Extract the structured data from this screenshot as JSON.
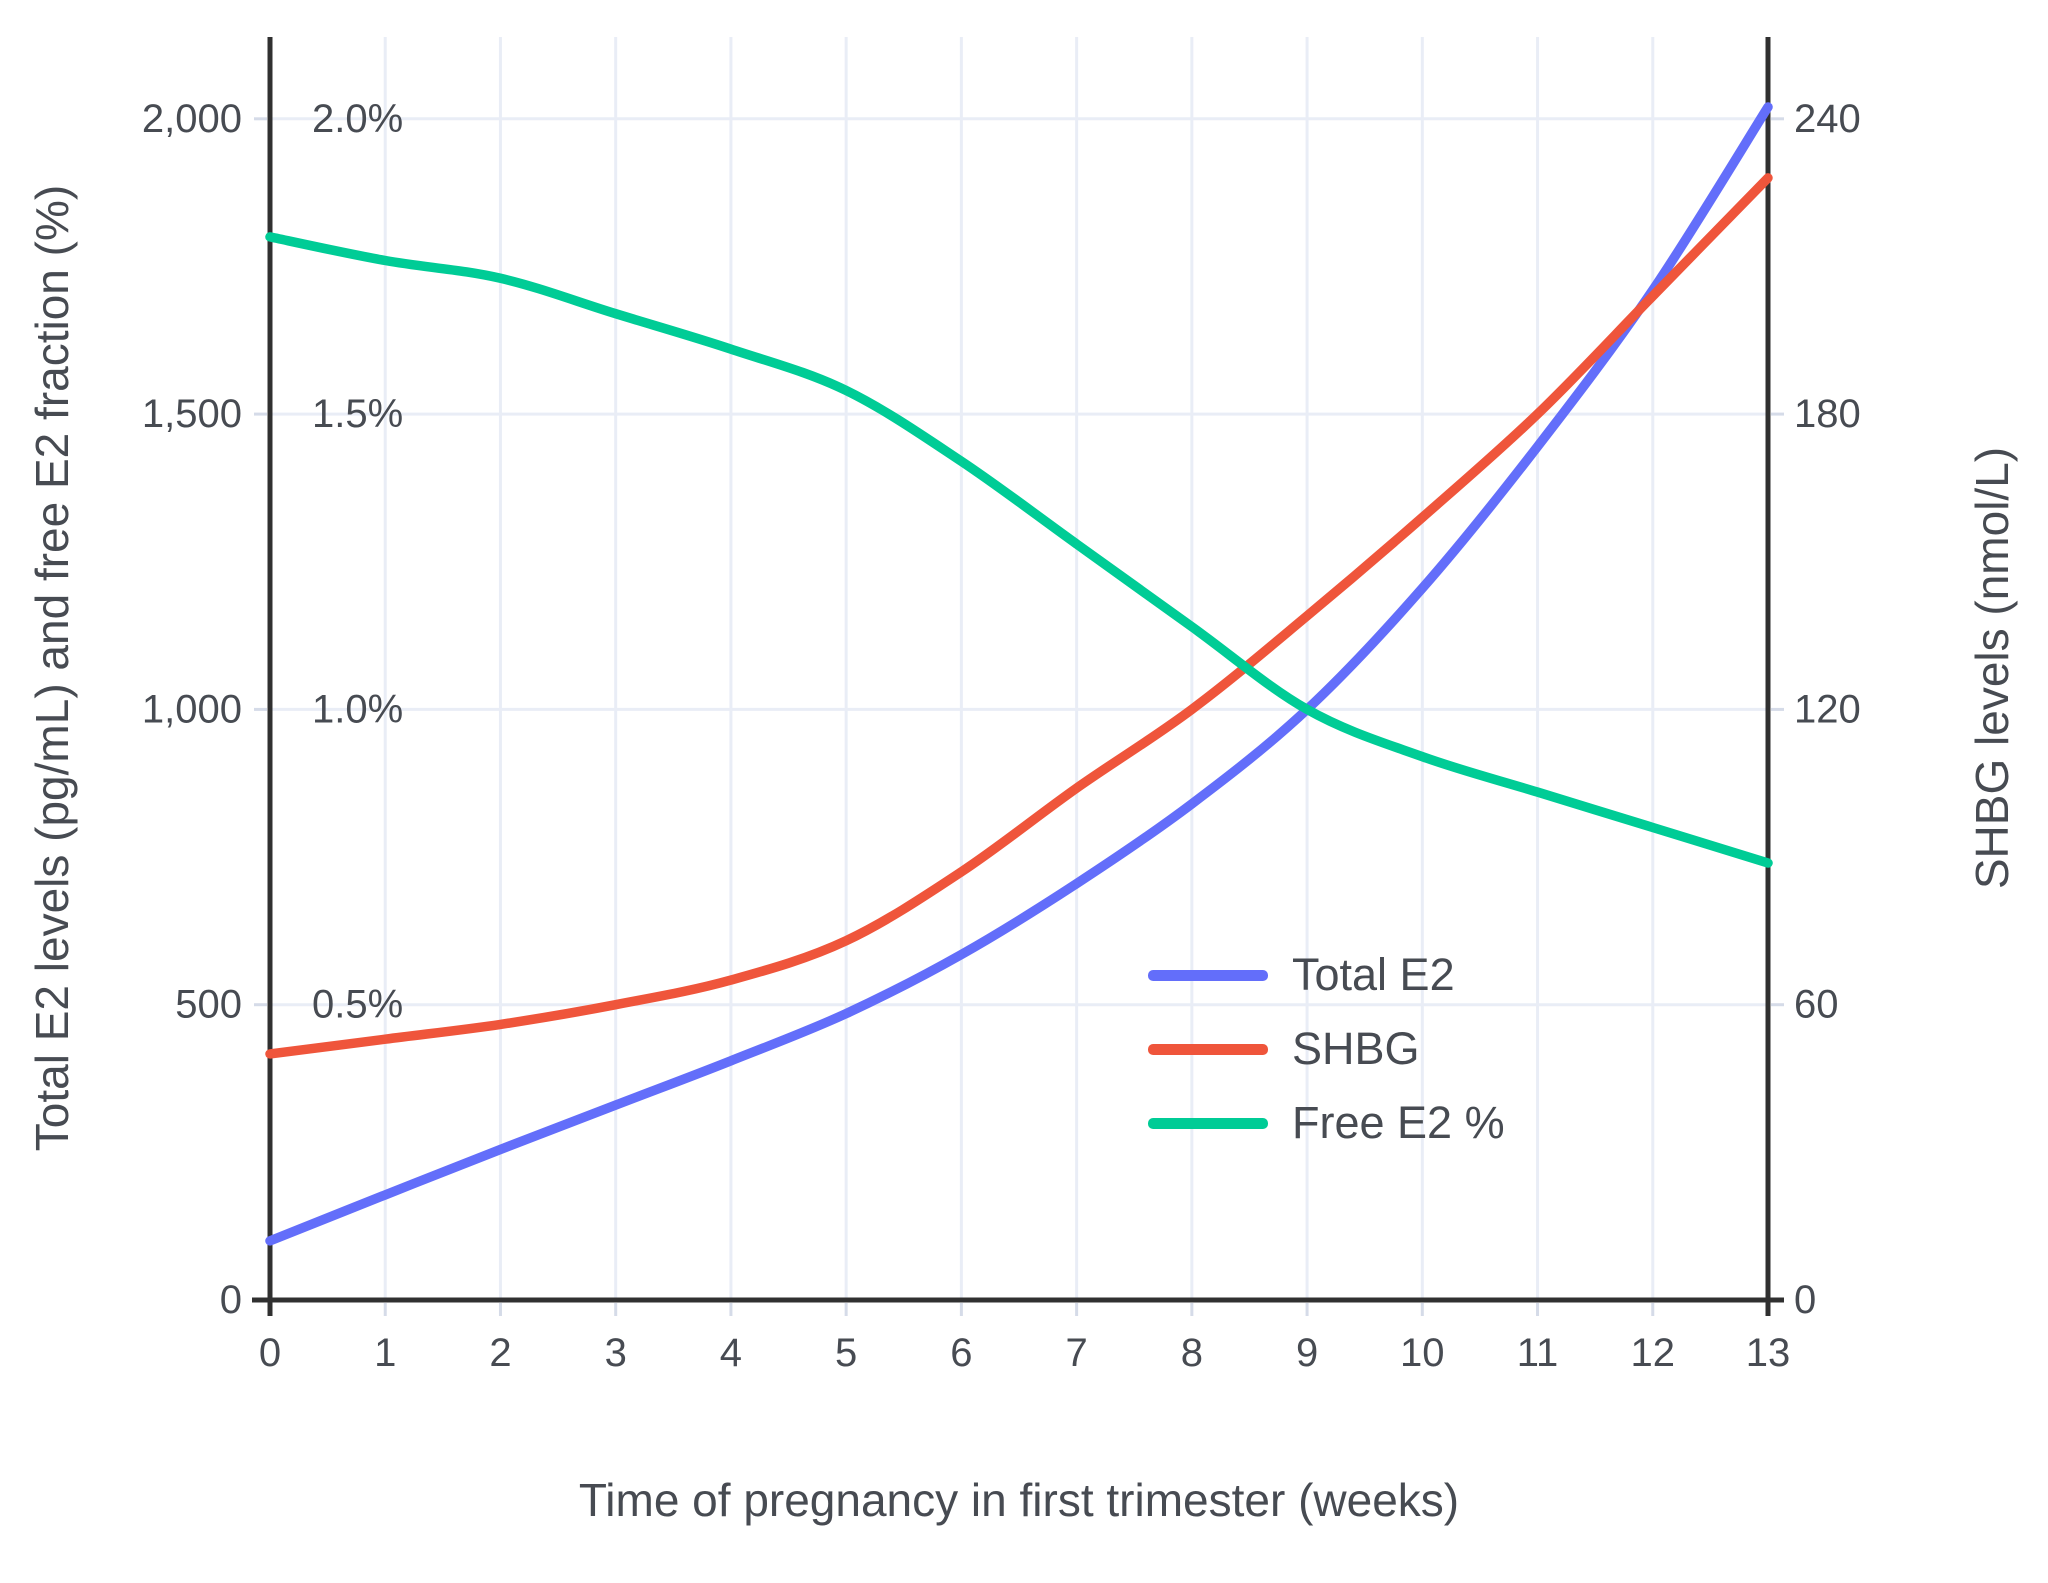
{
  "page": {
    "background": "#FFFFFF"
  },
  "chart_data": {
    "type": "line",
    "title": "",
    "xlabel": "Time of pregnancy in first trimester (weeks)",
    "ylabel_left": "Total E2 levels (pg/mL) and free E2 fraction (%)",
    "ylabel_right": "SHBG levels (nmol/L)",
    "x": [
      0,
      1,
      2,
      3,
      4,
      5,
      6,
      7,
      8,
      9,
      10,
      11,
      12,
      13
    ],
    "x_tick_labels": [
      "0",
      "1",
      "2",
      "3",
      "4",
      "5",
      "6",
      "7",
      "8",
      "9",
      "10",
      "11",
      "12",
      "13"
    ],
    "x_range": [
      0,
      13
    ],
    "y_left_range": [
      0,
      2138
    ],
    "y_right_range": [
      0,
      256.6
    ],
    "grid": true,
    "y_left_ticks": [
      {
        "value": 0,
        "label": "0"
      },
      {
        "value": 500,
        "label": "500"
      },
      {
        "value": 1000,
        "label": "1,000"
      },
      {
        "value": 1500,
        "label": "1,500"
      },
      {
        "value": 2000,
        "label": "2,000"
      }
    ],
    "y_left_percent_annotations": [
      {
        "label": "0.5%",
        "left_axis_value": 500
      },
      {
        "label": "1.0%",
        "left_axis_value": 1000
      },
      {
        "label": "1.5%",
        "left_axis_value": 1500
      },
      {
        "label": "2.0%",
        "left_axis_value": 2000
      }
    ],
    "y_right_ticks": [
      {
        "value": 0,
        "label": "0"
      },
      {
        "value": 60,
        "label": "60"
      },
      {
        "value": 120,
        "label": "120"
      },
      {
        "value": 180,
        "label": "180"
      },
      {
        "value": 240,
        "label": "240"
      }
    ],
    "legend": {
      "position": "inside-middle-right",
      "entries": [
        "Total E2",
        "SHBG",
        "Free E2 %"
      ]
    },
    "series": [
      {
        "name": "Total E2",
        "color": "#636EFA",
        "axis": "left",
        "unit": "pg/mL",
        "values": [
          100,
          178,
          255,
          330,
          405,
          485,
          585,
          705,
          840,
          1000,
          1205,
          1445,
          1710,
          2020
        ]
      },
      {
        "name": "SHBG",
        "color": "#EF553B",
        "axis": "right",
        "unit": "nmol/L",
        "values": [
          50,
          53,
          56,
          60,
          65,
          73,
          87,
          104,
          120,
          139,
          159,
          180,
          204,
          228
        ]
      },
      {
        "name": "Free E2 %",
        "color": "#00CC96",
        "axis": "left-as-percent",
        "unit": "%",
        "values": [
          1.8,
          1.76,
          1.73,
          1.67,
          1.61,
          1.54,
          1.42,
          1.28,
          1.14,
          1.0,
          0.92,
          0.86,
          0.8,
          0.74
        ]
      }
    ]
  },
  "style": {
    "background": "#FFFFFF",
    "grid_color": "#E9EDF6",
    "axis_line_color": "#303030",
    "tick_color": "#D5DBE8",
    "text_color": "#474B52"
  }
}
